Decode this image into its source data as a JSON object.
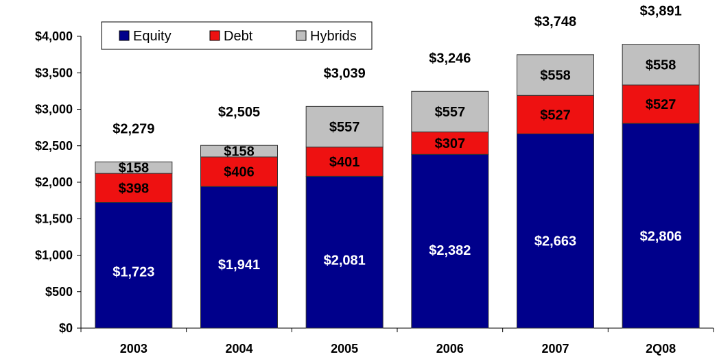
{
  "chart_data": {
    "type": "bar",
    "stacked": true,
    "categories": [
      "2003",
      "2004",
      "2005",
      "2006",
      "2007",
      "2Q08"
    ],
    "series": [
      {
        "name": "Equity",
        "color": "#00008b",
        "label_color": "#ffffff",
        "values": [
          1723,
          1941,
          2081,
          2382,
          2663,
          2806
        ],
        "labels": [
          "$1,723",
          "$1,941",
          "$2,081",
          "$2,382",
          "$2,663",
          "$2,806"
        ]
      },
      {
        "name": "Debt",
        "color": "#ee1111",
        "label_color": "#000000",
        "values": [
          398,
          406,
          401,
          307,
          527,
          527
        ],
        "labels": [
          "$398",
          "$406",
          "$401",
          "$307",
          "$527",
          "$527"
        ]
      },
      {
        "name": "Hybrids",
        "color": "#c0c0c0",
        "label_color": "#000000",
        "values": [
          158,
          158,
          557,
          557,
          558,
          558
        ],
        "labels": [
          "$158",
          "$158",
          "$557",
          "$557",
          "$558",
          "$558"
        ]
      }
    ],
    "totals": [
      2279,
      2505,
      3039,
      3246,
      3748,
      3891
    ],
    "total_labels": [
      "$2,279",
      "$2,505",
      "$3,039",
      "$3,246",
      "$3,748",
      "$3,891"
    ],
    "y_ticks": [
      0,
      500,
      1000,
      1500,
      2000,
      2500,
      3000,
      3500,
      4000
    ],
    "y_tick_labels": [
      "$0",
      "$500",
      "$1,000",
      "$1,500",
      "$2,000",
      "$2,500",
      "$3,000",
      "$3,500",
      "$4,000"
    ],
    "ylim": [
      0,
      4000
    ],
    "title": "",
    "xlabel": "",
    "ylabel": "",
    "grid": false,
    "legend_position": "top-left"
  }
}
